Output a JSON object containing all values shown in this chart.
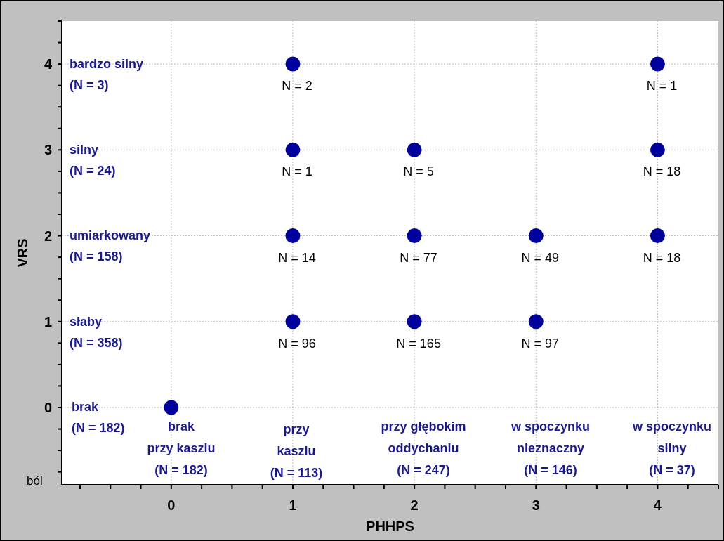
{
  "chart_data": {
    "type": "scatter",
    "xlabel": "PHHPS",
    "ylabel": "VRS",
    "x": [
      0,
      1,
      1,
      1,
      1,
      2,
      2,
      2,
      3,
      3,
      4,
      4,
      4
    ],
    "values": [
      0,
      4,
      3,
      2,
      1,
      3,
      2,
      1,
      2,
      1,
      4,
      3,
      2
    ],
    "color": "#00009c",
    "marker": "circle",
    "grid": true,
    "xlim": [
      -0.9,
      4.5
    ],
    "ylim": [
      -0.9,
      4.5
    ],
    "xticks": [
      {
        "value": -0.75,
        "label": null
      },
      {
        "value": -0.5,
        "label": null
      },
      {
        "value": -0.25,
        "label": null
      },
      0,
      {
        "value": 0.25,
        "label": null
      },
      {
        "value": 0.5,
        "label": null
      },
      {
        "value": 0.75,
        "label": null
      },
      1,
      {
        "value": 1.25,
        "label": null
      },
      {
        "value": 1.5,
        "label": null
      },
      {
        "value": 1.75,
        "label": null
      },
      2,
      {
        "value": 2.25,
        "label": null
      },
      {
        "value": 2.5,
        "label": null
      },
      {
        "value": 2.75,
        "label": null
      },
      3,
      {
        "value": 3.25,
        "label": null
      },
      {
        "value": 3.5,
        "label": null
      },
      {
        "value": 3.75,
        "label": null
      },
      4,
      {
        "value": 4.25,
        "label": null
      },
      {
        "value": 4.5,
        "label": null
      }
    ],
    "yticks": [
      {
        "value": -0.75,
        "label": null
      },
      {
        "value": -0.5,
        "label": null
      },
      {
        "value": -0.25,
        "label": null
      },
      0,
      {
        "value": 0.25,
        "label": null
      },
      {
        "value": 0.5,
        "label": null
      },
      {
        "value": 0.75,
        "label": null
      },
      1,
      {
        "value": 1.25,
        "label": null
      },
      {
        "value": 1.5,
        "label": null
      },
      {
        "value": 1.75,
        "label": null
      },
      2,
      {
        "value": 2.25,
        "label": null
      },
      {
        "value": 2.5,
        "label": null
      },
      {
        "value": 2.75,
        "label": null
      },
      3,
      {
        "value": 3.25,
        "label": null
      },
      {
        "value": 3.5,
        "label": null
      },
      {
        "value": 3.75,
        "label": null
      },
      4,
      {
        "value": 4.25,
        "label": null
      },
      {
        "value": 4.5,
        "label": null
      }
    ],
    "annotations": [
      {
        "text": "N = 2",
        "x": 1,
        "y": 4
      },
      {
        "text": "N = 1",
        "x": 1,
        "y": 3
      },
      {
        "text": "N = 14",
        "x": 1,
        "y": 2
      },
      {
        "text": "N = 96",
        "x": 1,
        "y": 1
      },
      {
        "text": "N = 5",
        "x": 2,
        "y": 3
      },
      {
        "text": "N = 77",
        "x": 2,
        "y": 2
      },
      {
        "text": "N = 165",
        "x": 2,
        "y": 1
      },
      {
        "text": "N = 49",
        "x": 3,
        "y": 2
      },
      {
        "text": "N = 97",
        "x": 3,
        "y": 1
      },
      {
        "text": "N = 1",
        "x": 4,
        "y": 4
      },
      {
        "text": "N = 18",
        "x": 4,
        "y": 3
      },
      {
        "text": "N = 18",
        "x": 4,
        "y": 2
      },
      "bardzo silny\n(N = 3)",
      "silny\n(N = 24)",
      "umiarkowany\n(N = 158)",
      "słaby\n(N = 358)",
      "brak\n(N = 182)",
      "brak\nprzy kaszlu\n(N = 182)",
      "przy\nkaszlu\n(N = 113)",
      "przy głębokim\noddychaniu\n(N = 247)",
      "w spoczynku\nnieznaczny\n(N = 146)",
      "w spoczynku\nsilny\n(N = 37)",
      "ból"
    ]
  }
}
